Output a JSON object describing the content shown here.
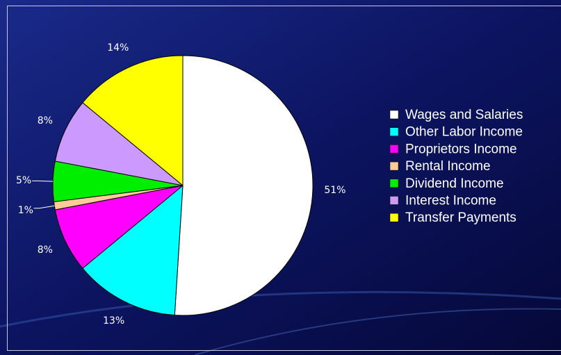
{
  "chart_data": {
    "type": "pie",
    "categories": [
      "Wages and Salaries",
      "Other Labor Income",
      "Proprietors Income",
      "Rental Income",
      "Dividend Income",
      "Interest Income",
      "Transfer Payments"
    ],
    "values": [
      51,
      13,
      8,
      1,
      5,
      8,
      14
    ],
    "value_labels": [
      "51%",
      "13%",
      "8%",
      "1%",
      "5%",
      "8%",
      "14%"
    ],
    "colors": [
      "#ffffff",
      "#00ffff",
      "#ff00ff",
      "#ffcc99",
      "#00ee00",
      "#cc99ff",
      "#ffff00"
    ],
    "legend": "right"
  }
}
